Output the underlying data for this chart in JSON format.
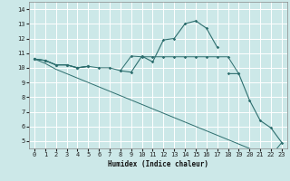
{
  "xlabel": "Humidex (Indice chaleur)",
  "x": [
    0,
    1,
    2,
    3,
    4,
    5,
    6,
    7,
    8,
    9,
    10,
    11,
    12,
    13,
    14,
    15,
    16,
    17,
    18,
    19,
    20,
    21,
    22,
    23
  ],
  "line_flat": [
    10.6,
    10.5,
    10.2,
    10.2,
    10.0,
    10.1,
    10.0,
    10.0,
    9.8,
    10.8,
    10.75,
    10.75,
    10.75,
    10.75,
    10.75,
    10.75,
    10.75,
    10.75,
    10.75,
    9.6,
    null,
    null,
    null,
    null
  ],
  "line_peak": [
    10.6,
    10.5,
    10.2,
    10.2,
    10.0,
    10.1,
    null,
    null,
    9.8,
    9.7,
    10.8,
    10.4,
    11.9,
    12.0,
    13.0,
    13.2,
    12.7,
    11.4,
    null,
    null,
    null,
    null,
    null,
    null
  ],
  "line_main": [
    10.6,
    10.5,
    10.2,
    10.2,
    10.0,
    10.1,
    null,
    null,
    null,
    null,
    null,
    null,
    null,
    null,
    null,
    null,
    null,
    null,
    9.6,
    9.6,
    7.8,
    6.4,
    5.9,
    4.9
  ],
  "line_low": [
    10.6,
    10.3,
    9.9,
    9.6,
    9.3,
    9.0,
    8.7,
    8.4,
    8.1,
    7.8,
    7.5,
    7.2,
    6.9,
    6.6,
    6.3,
    6.0,
    5.7,
    5.4,
    5.1,
    4.8,
    4.5,
    4.2,
    4.0,
    4.9
  ],
  "bg_color": "#cce8e8",
  "grid_color": "#ffffff",
  "line_color": "#2d6e6e",
  "xlim": [
    -0.5,
    23.5
  ],
  "ylim": [
    4.5,
    14.5
  ],
  "yticks": [
    5,
    6,
    7,
    8,
    9,
    10,
    11,
    12,
    13,
    14
  ],
  "xticks": [
    0,
    1,
    2,
    3,
    4,
    5,
    6,
    7,
    8,
    9,
    10,
    11,
    12,
    13,
    14,
    15,
    16,
    17,
    18,
    19,
    20,
    21,
    22,
    23
  ]
}
